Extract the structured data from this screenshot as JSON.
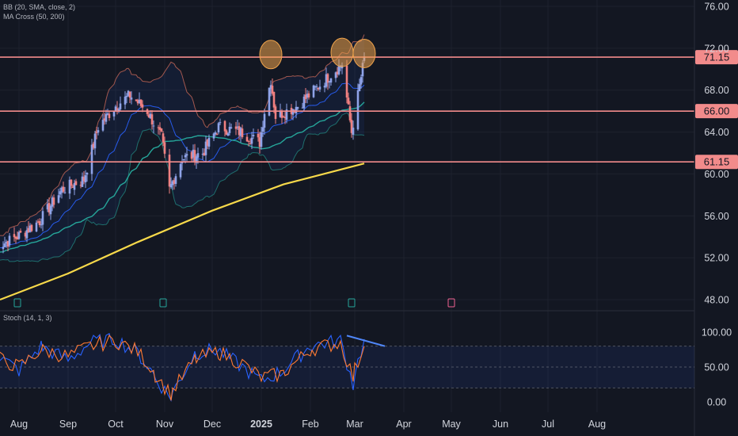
{
  "indicators": {
    "bb": "BB (20, SMA, close, 2)",
    "ma_cross": "MA Cross (50, 200)",
    "stoch": "Stoch (14, 1, 3)"
  },
  "colors": {
    "background": "#131722",
    "candle_up": "#8fa3e8",
    "candle_down": "#f08080",
    "bb_band": "#e0725e",
    "bb_basis": "#2962ff",
    "ma50": "#26a69a",
    "ma200": "#f7d94a",
    "horizontal_level": "#f28b8b",
    "highlight_circle": "#f0a44c",
    "stoch_k": "#2962ff",
    "stoch_d": "#ff7a33",
    "trendline": "#4f86f7"
  },
  "chart_data": [
    {
      "type": "candlestick",
      "title": "",
      "price_axis": {
        "ticks": [
          "76.00",
          "72.00",
          "68.00",
          "64.00",
          "60.00",
          "56.00",
          "52.00",
          "48.00"
        ],
        "range": [
          48,
          76
        ]
      },
      "time_axis": {
        "ticks": [
          "Aug",
          "Sep",
          "Oct",
          "Nov",
          "Dec",
          "2025",
          "Feb",
          "Mar",
          "Apr",
          "May",
          "Jun",
          "Jul",
          "Aug"
        ]
      },
      "levels": [
        {
          "label": "71.15",
          "value": 71.15
        },
        {
          "label": "66.00",
          "value": 66.0
        },
        {
          "label": "61.15",
          "value": 61.15
        }
      ],
      "series_close_approx": [
        {
          "date": "2024-07-17",
          "close": 53.0
        },
        {
          "date": "2024-07-31",
          "close": 54.0
        },
        {
          "date": "2024-08-14",
          "close": 55.5
        },
        {
          "date": "2024-08-28",
          "close": 58.5
        },
        {
          "date": "2024-09-11",
          "close": 59.5
        },
        {
          "date": "2024-09-20",
          "close": 64.5
        },
        {
          "date": "2024-10-01",
          "close": 66.5
        },
        {
          "date": "2024-10-10",
          "close": 67.5
        },
        {
          "date": "2024-10-21",
          "close": 66.0
        },
        {
          "date": "2024-10-30",
          "close": 63.5
        },
        {
          "date": "2024-11-04",
          "close": 58.5
        },
        {
          "date": "2024-11-12",
          "close": 61.5
        },
        {
          "date": "2024-11-25",
          "close": 62.0
        },
        {
          "date": "2024-12-05",
          "close": 64.5
        },
        {
          "date": "2024-12-19",
          "close": 64.0
        },
        {
          "date": "2024-12-31",
          "close": 63.0
        },
        {
          "date": "2025-01-03",
          "close": 66.0
        },
        {
          "date": "2025-01-07",
          "close": 69.0
        },
        {
          "date": "2025-01-10",
          "close": 65.5
        },
        {
          "date": "2025-01-24",
          "close": 66.5
        },
        {
          "date": "2025-02-07",
          "close": 68.5
        },
        {
          "date": "2025-02-21",
          "close": 70.5
        },
        {
          "date": "2025-02-27",
          "close": 64.0
        },
        {
          "date": "2025-03-07",
          "close": 71.0
        }
      ],
      "ma200_approx": [
        {
          "date": "2024-07-20",
          "value": 48.0
        },
        {
          "date": "2024-09-01",
          "value": 50.5
        },
        {
          "date": "2024-10-15",
          "value": 53.5
        },
        {
          "date": "2024-12-01",
          "value": 56.5
        },
        {
          "date": "2025-01-15",
          "value": 59.0
        },
        {
          "date": "2025-03-07",
          "value": 61.0
        }
      ],
      "highlighted_highs": [
        {
          "date": "2025-01-07",
          "value": 71.4
        },
        {
          "date": "2025-02-21",
          "value": 71.6
        },
        {
          "date": "2025-03-07",
          "value": 71.5
        }
      ]
    },
    {
      "type": "line",
      "title": "",
      "axis": {
        "ticks": [
          "100.00",
          "50.00",
          "0.00"
        ],
        "range": [
          0,
          100
        ]
      },
      "overbought": 80,
      "oversold": 20,
      "series": [
        {
          "color": "#2962ff",
          "x": [
            "2024-07-17",
            "2024-08-01",
            "2024-08-15",
            "2024-09-01",
            "2024-09-15",
            "2024-10-01",
            "2024-10-15",
            "2024-10-25",
            "2024-11-05",
            "2024-11-20",
            "2024-12-05",
            "2024-12-20",
            "2025-01-01",
            "2025-01-15",
            "2025-02-01",
            "2025-02-20",
            "2025-02-28",
            "2025-03-07"
          ],
          "values": [
            70,
            45,
            80,
            60,
            85,
            90,
            70,
            40,
            5,
            70,
            75,
            50,
            30,
            45,
            80,
            88,
            25,
            90
          ]
        },
        {
          "color": "#ff7a33",
          "x": [
            "2024-07-17",
            "2024-08-01",
            "2024-08-15",
            "2024-09-01",
            "2024-09-15",
            "2024-10-01",
            "2024-10-15",
            "2024-10-25",
            "2024-11-05",
            "2024-11-20",
            "2024-12-05",
            "2024-12-20",
            "2025-01-01",
            "2025-01-15",
            "2025-02-01",
            "2025-02-20",
            "2025-02-28",
            "2025-03-07"
          ],
          "values": [
            65,
            50,
            75,
            65,
            80,
            88,
            72,
            45,
            10,
            60,
            72,
            55,
            35,
            40,
            75,
            85,
            35,
            80
          ]
        }
      ],
      "trendline": {
        "from": {
          "date": "2025-02-24",
          "value": 95
        },
        "to": {
          "date": "2025-03-20",
          "value": 80
        }
      }
    }
  ]
}
